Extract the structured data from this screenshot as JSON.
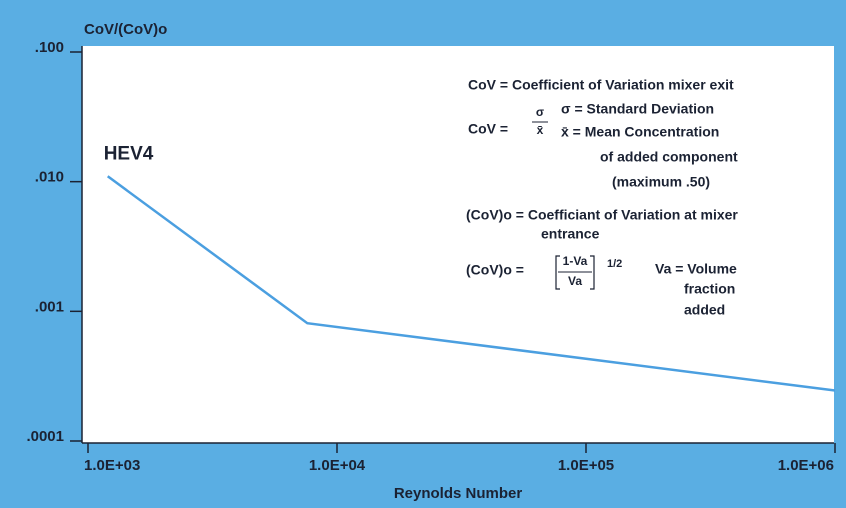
{
  "chart_data": {
    "type": "line",
    "y_label": "CoV/(CoV)o",
    "x_label": "Reynolds Number",
    "log_x": true,
    "log_y": true,
    "x": [
      1200,
      7600,
      1000000
    ],
    "series": [
      {
        "name": "HEV4",
        "color": "#4b9fe0",
        "values": [
          0.011,
          0.00081,
          0.000245
        ]
      }
    ],
    "xlim": [
      1000,
      1000000
    ],
    "ylim": [
      0.0001,
      0.1
    ],
    "xticks": [
      {
        "value": 1000,
        "label": "1.0E+03"
      },
      {
        "value": 10000,
        "label": "1.0E+04"
      },
      {
        "value": 100000,
        "label": "1.0E+05"
      },
      {
        "value": 1000000,
        "label": "1.0E+06"
      }
    ],
    "yticks": [
      {
        "value": 0.0001,
        "label": ".0001"
      },
      {
        "value": 0.001,
        "label": ".001"
      },
      {
        "value": 0.01,
        "label": ".010"
      },
      {
        "value": 0.1,
        "label": ".100"
      }
    ],
    "annotations": [
      "CoV = Coefficient of Variation mixer exit",
      "CoV =",
      "σ",
      "x̄",
      "σ = Standard Deviation",
      "x̄ = Mean Concentration",
      "of added component",
      "(maximum .50)",
      "(CoV)o = Coefficiant of Variation at mixer",
      "entrance",
      "(CoV)o =",
      "1-Va",
      "Va",
      "1/2",
      "Va = Volume",
      "fraction",
      "added"
    ]
  }
}
